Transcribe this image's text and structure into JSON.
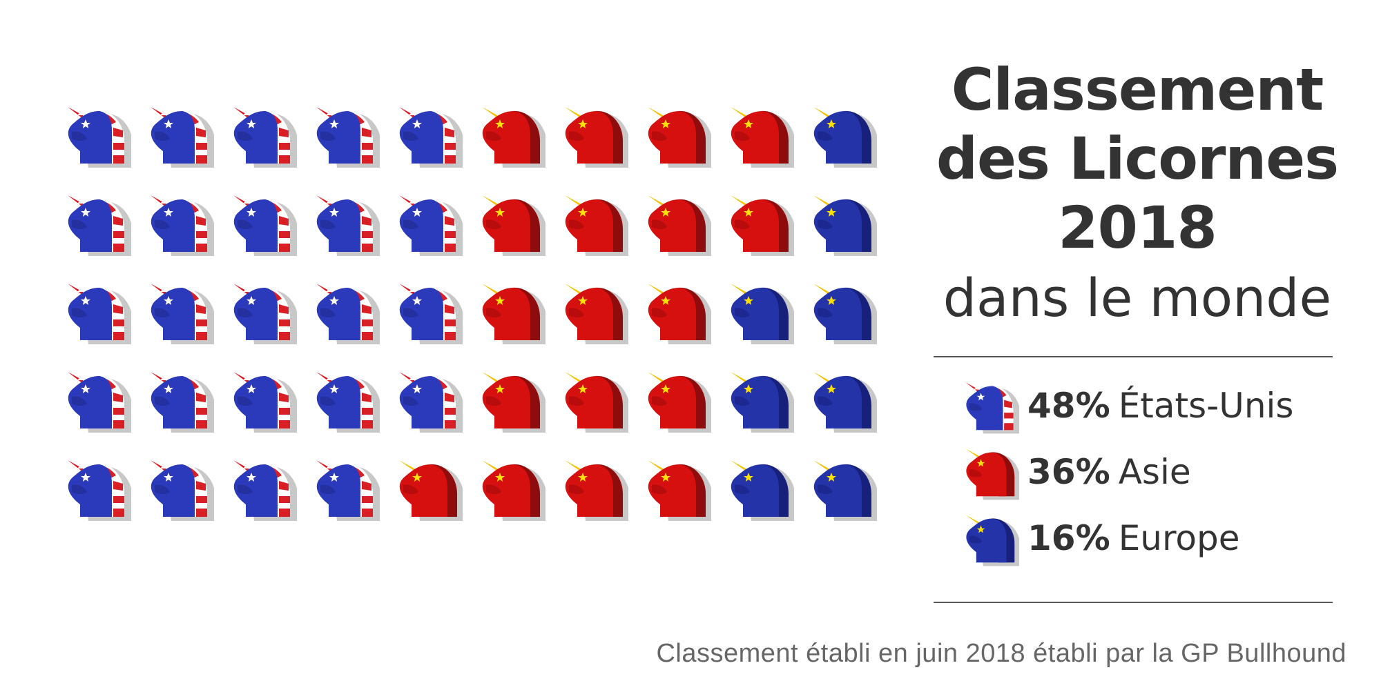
{
  "title": {
    "line1": "Classement",
    "line2": "des Licornes",
    "line3": "2018",
    "subtitle": "dans le monde"
  },
  "caption": "Classement établi en juin 2018 établi par la GP Bullhound",
  "colors": {
    "usa_blue": "#2b3aba",
    "usa_red": "#d91f26",
    "asia_red": "#d60f0f",
    "asia_dark": "#8e0c0c",
    "europe_blue": "#2433a8",
    "europe_dark": "#17207a",
    "horn_gold": "#f2c300",
    "star_yellow": "#ffe100",
    "shadow": "#c8c8c8",
    "text": "#333333"
  },
  "legend": [
    {
      "key": "usa",
      "percent": "48%",
      "label": "États-Unis",
      "icon": "unicorn-usa-icon"
    },
    {
      "key": "asia",
      "percent": "36%",
      "label": "Asie",
      "icon": "unicorn-asia-icon"
    },
    {
      "key": "europe",
      "percent": "16%",
      "label": "Europe",
      "icon": "unicorn-europe-icon"
    }
  ],
  "chart_data": {
    "type": "pictogram",
    "title": "Classement des Licornes 2018 dans le monde",
    "total_icons": 50,
    "rows": 5,
    "columns": 10,
    "categories": [
      "États-Unis",
      "Asie",
      "Europe"
    ],
    "values": [
      48,
      36,
      16
    ],
    "units": "%",
    "counts": [
      24,
      18,
      8
    ],
    "grid": [
      [
        "usa",
        "usa",
        "usa",
        "usa",
        "usa",
        "asia",
        "asia",
        "asia",
        "asia",
        "europe"
      ],
      [
        "usa",
        "usa",
        "usa",
        "usa",
        "usa",
        "asia",
        "asia",
        "asia",
        "asia",
        "europe"
      ],
      [
        "usa",
        "usa",
        "usa",
        "usa",
        "usa",
        "asia",
        "asia",
        "asia",
        "europe",
        "europe"
      ],
      [
        "usa",
        "usa",
        "usa",
        "usa",
        "usa",
        "asia",
        "asia",
        "asia",
        "europe",
        "europe"
      ],
      [
        "usa",
        "usa",
        "usa",
        "usa",
        "asia",
        "asia",
        "asia",
        "asia",
        "europe",
        "europe"
      ]
    ]
  }
}
